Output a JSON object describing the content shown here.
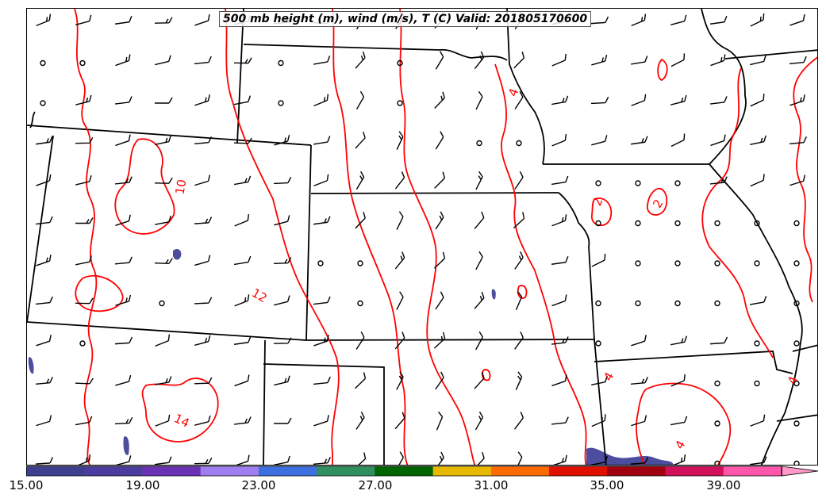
{
  "title": "500 mb height (m), wind (m/s), T (C) Valid: 201805170600",
  "colors": {
    "contour": "#ff0000",
    "borders": "#000000",
    "barbs": "#000000",
    "shade_low": "#4d4d9f"
  },
  "contour_labels": [
    "4",
    "10",
    "12",
    "2",
    "2",
    "14",
    "4",
    "4",
    "4"
  ],
  "colorbar": {
    "min": 15.0,
    "max": 41.0,
    "extend": "max",
    "tick_labels": [
      "15.00",
      "19.00",
      "23.00",
      "27.00",
      "31.00",
      "35.00",
      "39.00"
    ],
    "colors": [
      "#3f3f8f",
      "#4b3d9e",
      "#6a31b4",
      "#9f7ff0",
      "#3c6fe0",
      "#2f8f5f",
      "#006400",
      "#e6b800",
      "#ff6a00",
      "#e01000",
      "#a00010",
      "#d0105a",
      "#ff55aa",
      "#ff9ac8"
    ]
  }
}
